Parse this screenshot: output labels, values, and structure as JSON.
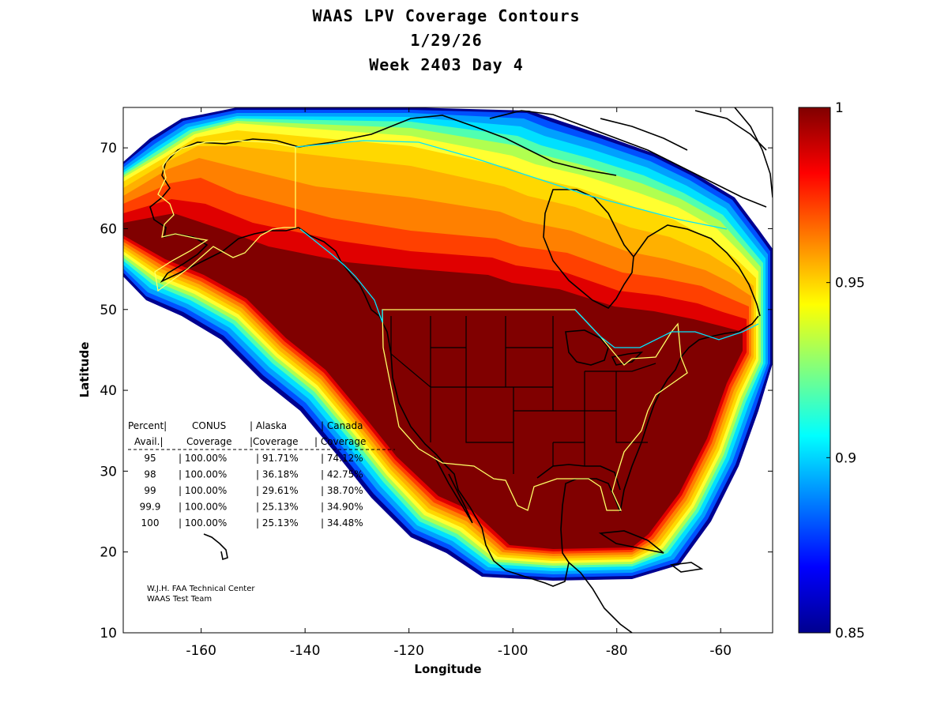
{
  "title_lines": [
    "WAAS LPV Coverage Contours",
    "1/29/26",
    "Week 2403 Day 4"
  ],
  "axes": {
    "xlabel": "Longitude",
    "ylabel": "Latitude",
    "xlim": [
      -175,
      -50
    ],
    "ylim": [
      10,
      75
    ],
    "xticks": [
      -160,
      -140,
      -120,
      -100,
      -80,
      -60
    ],
    "yticks": [
      10,
      20,
      30,
      40,
      50,
      60,
      70
    ]
  },
  "colorbar": {
    "min": 0.85,
    "max": 1,
    "ticks": [
      {
        "value": 1,
        "label": "1"
      },
      {
        "value": 0.95,
        "label": "0.95"
      },
      {
        "value": 0.9,
        "label": "0.9"
      },
      {
        "value": 0.85,
        "label": "0.85"
      }
    ],
    "colormap": "jet"
  },
  "table": {
    "header1": [
      "Percent|",
      "CONUS",
      "| Alaska",
      "| Canada"
    ],
    "header2": [
      "Avail.|",
      "Coverage",
      "|Coverage",
      "| Coverage"
    ],
    "rows": [
      [
        "95",
        "| 100.00%",
        "| 91.71%",
        "| 74.12%"
      ],
      [
        "98",
        "| 100.00%",
        "| 36.18%",
        "| 42.75%"
      ],
      [
        "99",
        "| 100.00%",
        "| 29.61%",
        "| 38.70%"
      ],
      [
        "99.9",
        "| 100.00%",
        "| 25.13%",
        "| 34.90%"
      ],
      [
        "100",
        "| 100.00%",
        "| 25.13%",
        "| 34.48%"
      ]
    ]
  },
  "credits": [
    "W.J.H. FAA Technical Center",
    "WAAS Test Team"
  ],
  "colors": {
    "dark_red": "#800000",
    "red": "#e00000",
    "orange_red": "#ff4000",
    "orange": "#ff8000",
    "amber": "#ffb000",
    "yellow": "#ffd800",
    "light_yellow": "#ffff30",
    "green_yellow": "#b0ff50",
    "cyan_green": "#50ffb0",
    "cyan": "#00e0ff",
    "sky": "#00a0ff",
    "blue": "#0050ff",
    "navy": "#000090",
    "region_outline": "#ffff66",
    "alaska_border": "#00e5ff",
    "land_outline": "#000000"
  }
}
